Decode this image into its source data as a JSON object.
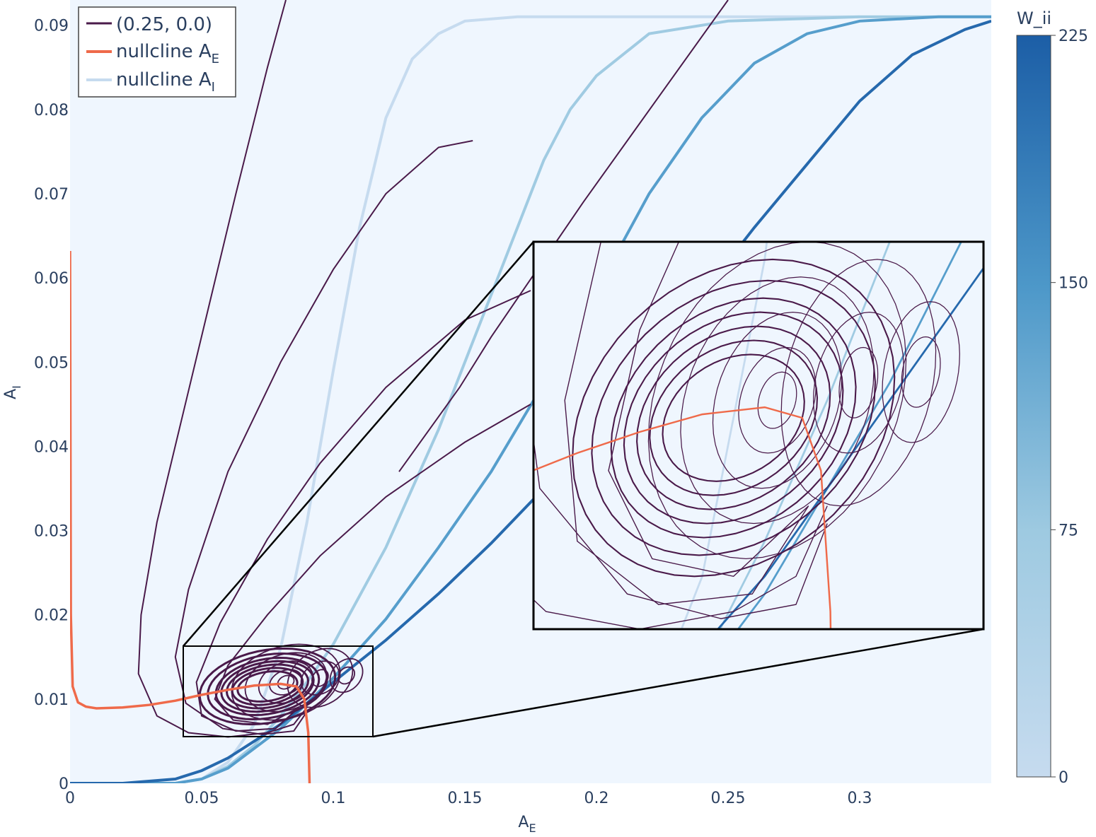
{
  "chart_data": {
    "type": "line",
    "xlabel": "A",
    "xlabel_sub": "E",
    "ylabel": "A",
    "ylabel_sub": "I",
    "xlim": [
      0,
      0.35
    ],
    "ylim": [
      0,
      0.093
    ],
    "x_ticks": [
      {
        "value": 0,
        "label": "0"
      },
      {
        "value": 0.05,
        "label": "0.05"
      },
      {
        "value": 0.1,
        "label": "0.1"
      },
      {
        "value": 0.15,
        "label": "0.15"
      },
      {
        "value": 0.2,
        "label": "0.2"
      },
      {
        "value": 0.25,
        "label": "0.25"
      },
      {
        "value": 0.3,
        "label": "0.3"
      }
    ],
    "y_ticks": [
      {
        "value": 0,
        "label": "0"
      },
      {
        "value": 0.01,
        "label": "0.01"
      },
      {
        "value": 0.02,
        "label": "0.02"
      },
      {
        "value": 0.03,
        "label": "0.03"
      },
      {
        "value": 0.04,
        "label": "0.04"
      },
      {
        "value": 0.05,
        "label": "0.05"
      },
      {
        "value": 0.06,
        "label": "0.06"
      },
      {
        "value": 0.07,
        "label": "0.07"
      },
      {
        "value": 0.08,
        "label": "0.08"
      },
      {
        "value": 0.09,
        "label": "0.09"
      }
    ],
    "grid": false,
    "background": "#eff6fe",
    "legend_position": "top-left",
    "legend": [
      {
        "label": "(0.25, 0.0)",
        "sub": "",
        "color": "#4a1a4a"
      },
      {
        "label": "nullcline A",
        "sub": "E",
        "color": "#ef6a4a"
      },
      {
        "label": "nullcline A",
        "sub": "I",
        "color": "#c6dbef"
      }
    ],
    "trajectory_color": "#4a1a4a",
    "nullcline_E": {
      "name": "nullcline A_E",
      "color": "#ef6a4a",
      "x": [
        0,
        0.0003,
        0.001,
        0.003,
        0.006,
        0.01,
        0.02,
        0.03,
        0.04,
        0.05,
        0.06,
        0.07,
        0.08,
        0.086,
        0.089,
        0.0905,
        0.091
      ],
      "y": [
        0.0632,
        0.02,
        0.0115,
        0.0096,
        0.0091,
        0.0089,
        0.009,
        0.0093,
        0.0098,
        0.0105,
        0.0111,
        0.0116,
        0.0118,
        0.0115,
        0.01,
        0.006,
        0
      ]
    },
    "nullclines_I": [
      {
        "w_ii": 0,
        "x": [
          0,
          0.04,
          0.05,
          0.06,
          0.07,
          0.08,
          0.09,
          0.1,
          0.11,
          0.12,
          0.13,
          0.14,
          0.15,
          0.17,
          0.2,
          0.25,
          0.3
        ],
        "y": [
          0,
          0,
          0.0005,
          0.0025,
          0.007,
          0.016,
          0.031,
          0.049,
          0.066,
          0.079,
          0.086,
          0.089,
          0.0905,
          0.091,
          0.091,
          0.091,
          0.091
        ]
      },
      {
        "w_ii": 70,
        "x": [
          0,
          0.04,
          0.05,
          0.06,
          0.07,
          0.08,
          0.09,
          0.1,
          0.12,
          0.14,
          0.16,
          0.18,
          0.19,
          0.2,
          0.22,
          0.25,
          0.3,
          0.35
        ],
        "y": [
          0,
          0,
          0.0005,
          0.002,
          0.0045,
          0.008,
          0.012,
          0.0165,
          0.028,
          0.042,
          0.058,
          0.074,
          0.08,
          0.084,
          0.089,
          0.0905,
          0.091,
          0.091
        ]
      },
      {
        "w_ii": 140,
        "x": [
          0,
          0.04,
          0.05,
          0.06,
          0.08,
          0.1,
          0.12,
          0.14,
          0.16,
          0.18,
          0.2,
          0.22,
          0.24,
          0.26,
          0.28,
          0.3,
          0.33,
          0.35
        ],
        "y": [
          0,
          0,
          0.0005,
          0.0018,
          0.0065,
          0.0125,
          0.0195,
          0.028,
          0.037,
          0.0475,
          0.0585,
          0.07,
          0.079,
          0.0855,
          0.089,
          0.0905,
          0.091,
          0.091
        ]
      },
      {
        "w_ii": 210,
        "x": [
          0,
          0.02,
          0.04,
          0.05,
          0.06,
          0.07,
          0.08,
          0.09,
          0.1,
          0.12,
          0.14,
          0.16,
          0.18,
          0.2,
          0.22,
          0.24,
          0.26,
          0.28,
          0.3,
          0.32,
          0.34,
          0.35
        ],
        "y": [
          0,
          0,
          0.0005,
          0.0015,
          0.003,
          0.005,
          0.007,
          0.0095,
          0.012,
          0.017,
          0.0225,
          0.0285,
          0.035,
          0.042,
          0.05,
          0.058,
          0.066,
          0.0735,
          0.081,
          0.0865,
          0.0895,
          0.0905
        ]
      }
    ],
    "colorbar": {
      "title": "W_ii",
      "min": 0,
      "max": 225,
      "tick_values": [
        0,
        75,
        150,
        225
      ],
      "tick_labels": [
        "0",
        "75",
        "150",
        "225"
      ],
      "color_low": "#c6dbef",
      "color_high": "#1c5ea6"
    },
    "trajectories": [
      {
        "x": [
          0.25,
          0.195,
          0.16,
          0.148,
          0.125
        ],
        "y": [
          0.093,
          0.069,
          0.053,
          0.047,
          0.037
        ]
      },
      {
        "x": [
          0.082,
          0.075,
          0.063,
          0.053,
          0.043,
          0.033,
          0.027,
          0.026,
          0.033,
          0.045,
          0.06,
          0.075,
          0.085,
          0.09
        ],
        "y": [
          0.093,
          0.085,
          0.07,
          0.057,
          0.044,
          0.031,
          0.02,
          0.013,
          0.008,
          0.006,
          0.0055,
          0.006,
          0.007,
          0.009
        ]
      },
      {
        "x": [
          0.153,
          0.14,
          0.12,
          0.1,
          0.08,
          0.06,
          0.045,
          0.04,
          0.044,
          0.058,
          0.073,
          0.085,
          0.09
        ],
        "y": [
          0.0763,
          0.0755,
          0.07,
          0.061,
          0.05,
          0.037,
          0.023,
          0.015,
          0.0095,
          0.0065,
          0.0058,
          0.0062,
          0.0085
        ]
      },
      {
        "x": [
          0.175,
          0.15,
          0.12,
          0.095,
          0.075,
          0.057,
          0.048,
          0.05,
          0.063,
          0.078,
          0.087
        ],
        "y": [
          0.0585,
          0.055,
          0.047,
          0.038,
          0.029,
          0.019,
          0.012,
          0.008,
          0.0062,
          0.0065,
          0.009
        ]
      },
      {
        "x": [
          0.175,
          0.15,
          0.12,
          0.095,
          0.075,
          0.06,
          0.055,
          0.062,
          0.075,
          0.087
        ],
        "y": [
          0.045,
          0.0405,
          0.034,
          0.027,
          0.02,
          0.014,
          0.01,
          0.0075,
          0.007,
          0.009
        ]
      }
    ],
    "spirals": [
      {
        "cx": 0.075,
        "cy": 0.0115,
        "rx": [
          0.025,
          0.022,
          0.019,
          0.017,
          0.015,
          0.013,
          0.011
        ],
        "ry": [
          0.0045,
          0.0039,
          0.0034,
          0.003,
          0.0026,
          0.0022,
          0.0018
        ]
      },
      {
        "cx": 0.082,
        "cy": 0.012,
        "rx": [
          0.02,
          0.015,
          0.01,
          0.006,
          0.003
        ],
        "ry": [
          0.0045,
          0.0035,
          0.0025,
          0.0015,
          0.0008
        ]
      },
      {
        "cx": 0.095,
        "cy": 0.0125,
        "rx": [
          0.012,
          0.007,
          0.003
        ],
        "ry": [
          0.0035,
          0.002,
          0.001
        ]
      },
      {
        "cx": 0.105,
        "cy": 0.0128,
        "rx": [
          0.006,
          0.003
        ],
        "ry": [
          0.002,
          0.001
        ]
      }
    ],
    "inset": {
      "source_xlim": [
        0.043,
        0.115
      ],
      "source_ylim": [
        0.0055,
        0.0165
      ]
    }
  }
}
